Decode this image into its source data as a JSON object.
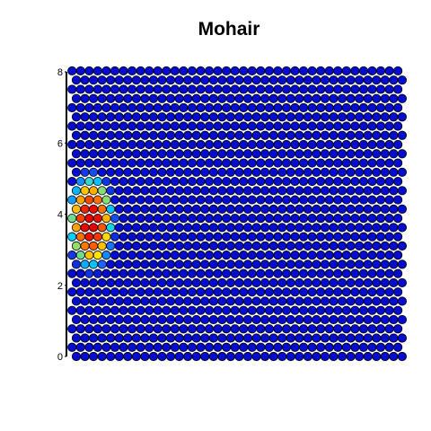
{
  "chart_data": {
    "type": "heatmap",
    "layout": "hexagonal",
    "title": "Mohair",
    "xlabel": "",
    "ylabel": "",
    "grid": false,
    "legend": "none",
    "grid_size": {
      "columns": 39,
      "rows": 32
    },
    "ylim": [
      0,
      8
    ],
    "yticks": [
      {
        "value": 0,
        "label": "0"
      },
      {
        "value": 2,
        "label": "2"
      },
      {
        "value": 4,
        "label": "4"
      },
      {
        "value": 6,
        "label": "6"
      },
      {
        "value": 8,
        "label": "8"
      }
    ],
    "value_range": [
      0,
      1
    ],
    "background_value": 0.03,
    "hotspot": {
      "center_col": 1.7,
      "center_row": 14.6,
      "radius_cols": 3.1,
      "radius_rows": 6.0,
      "peak": 1.0
    },
    "colorscale": [
      {
        "stop": 0.0,
        "color": "#0000c8"
      },
      {
        "stop": 0.25,
        "color": "#1e64ff"
      },
      {
        "stop": 0.45,
        "color": "#00d2ff"
      },
      {
        "stop": 0.6,
        "color": "#ffe600"
      },
      {
        "stop": 0.8,
        "color": "#ff7800"
      },
      {
        "stop": 1.0,
        "color": "#e60000"
      }
    ],
    "outline_color": "#000000"
  }
}
